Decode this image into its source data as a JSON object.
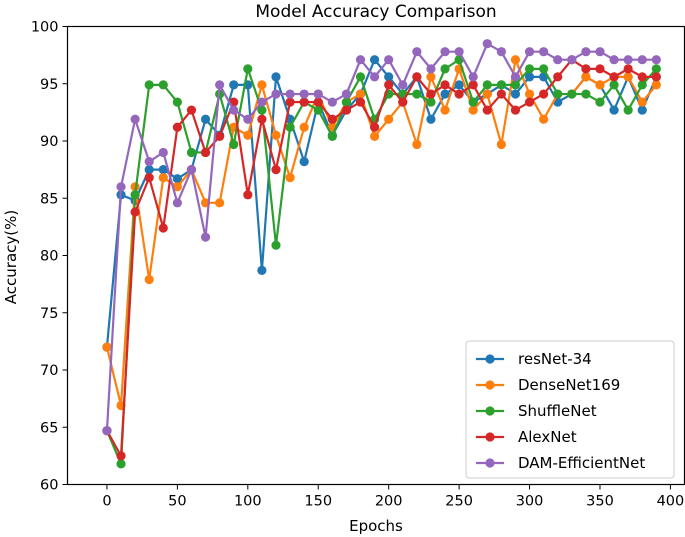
{
  "chart_data": {
    "type": "line",
    "title": "Model Accuracy Comparison",
    "xlabel": "Epochs",
    "ylabel": "Accuracy(%)",
    "xlim": [
      -28,
      410
    ],
    "ylim": [
      60,
      100
    ],
    "xticks": [
      0,
      50,
      100,
      150,
      200,
      250,
      300,
      350,
      400
    ],
    "yticks": [
      60,
      65,
      70,
      75,
      80,
      85,
      90,
      95,
      100
    ],
    "grid": false,
    "legend_position": "bottom-right",
    "x": [
      0,
      10,
      20,
      30,
      40,
      50,
      60,
      70,
      80,
      90,
      100,
      110,
      120,
      130,
      140,
      150,
      160,
      170,
      180,
      190,
      200,
      210,
      220,
      230,
      240,
      250,
      260,
      270,
      280,
      290,
      300,
      310,
      320,
      330,
      340,
      350,
      360,
      370,
      380,
      390
    ],
    "series": [
      {
        "name": "resNet-34",
        "color": "#1f77b4",
        "values": [
          72.0,
          85.3,
          84.8,
          87.5,
          87.5,
          86.7,
          87.5,
          91.9,
          90.5,
          94.9,
          94.9,
          78.7,
          95.6,
          91.9,
          88.2,
          93.4,
          90.5,
          92.7,
          94.1,
          97.1,
          95.6,
          94.1,
          95.6,
          91.9,
          94.1,
          94.9,
          93.4,
          94.1,
          94.9,
          94.1,
          95.6,
          95.6,
          93.4,
          94.1,
          95.6,
          94.9,
          92.7,
          95.6,
          92.7,
          95.6
        ]
      },
      {
        "name": "DenseNet169",
        "color": "#ff7f0e",
        "values": [
          72.0,
          66.9,
          86.0,
          77.9,
          86.8,
          86.0,
          87.5,
          84.6,
          84.6,
          91.2,
          90.5,
          94.9,
          90.5,
          86.8,
          91.2,
          94.1,
          91.2,
          93.4,
          94.1,
          90.4,
          91.9,
          93.4,
          89.7,
          95.6,
          92.7,
          96.3,
          92.7,
          94.1,
          89.7,
          97.1,
          94.1,
          91.9,
          94.1,
          94.1,
          95.6,
          94.9,
          95.6,
          95.6,
          93.4,
          94.9
        ]
      },
      {
        "name": "ShuffleNet",
        "color": "#2ca02c",
        "values": [
          64.7,
          61.8,
          85.3,
          94.9,
          94.9,
          93.4,
          89.0,
          89.0,
          94.1,
          89.7,
          96.3,
          92.7,
          80.9,
          91.2,
          93.4,
          92.7,
          90.4,
          93.4,
          95.6,
          91.9,
          94.1,
          94.1,
          94.1,
          93.4,
          96.3,
          97.1,
          93.4,
          94.9,
          94.9,
          94.9,
          96.3,
          96.3,
          94.1,
          94.1,
          94.1,
          93.4,
          94.9,
          92.7,
          94.9,
          96.3
        ]
      },
      {
        "name": "AlexNet",
        "color": "#d62728",
        "values": [
          64.7,
          62.5,
          83.8,
          86.8,
          82.4,
          91.2,
          92.7,
          89.0,
          90.4,
          93.4,
          85.3,
          91.9,
          87.5,
          93.4,
          93.4,
          93.4,
          91.9,
          92.7,
          93.4,
          91.2,
          94.9,
          93.4,
          95.6,
          94.1,
          94.9,
          94.1,
          94.9,
          92.7,
          94.1,
          92.7,
          93.4,
          94.1,
          95.6,
          97.1,
          96.3,
          96.3,
          95.6,
          96.3,
          95.6,
          95.6
        ]
      },
      {
        "name": "DAM-EfficientNet",
        "color": "#9467bd",
        "values": [
          64.7,
          86.0,
          91.9,
          88.2,
          89.0,
          84.6,
          87.5,
          81.6,
          94.9,
          92.7,
          91.9,
          93.4,
          94.1,
          94.1,
          94.1,
          94.1,
          93.4,
          94.1,
          97.1,
          95.6,
          97.1,
          94.9,
          97.8,
          96.3,
          97.8,
          97.8,
          95.6,
          98.5,
          97.8,
          95.6,
          97.8,
          97.8,
          97.1,
          97.1,
          97.8,
          97.8,
          97.1,
          97.1,
          97.1,
          97.1
        ]
      }
    ]
  }
}
